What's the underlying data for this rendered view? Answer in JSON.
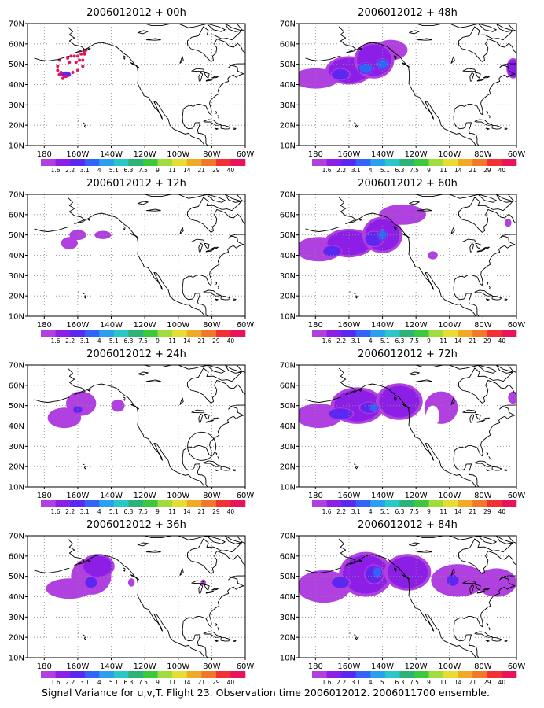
{
  "caption": "Signal Variance for u,v,T. Flight 23. Observation time 2006012012. 2006011700 ensemble.",
  "colors": {
    "levels": [
      "#b040e0",
      "#8c1ee6",
      "#5a28f0",
      "#3264f5",
      "#2aa0f0",
      "#28c8c8",
      "#2ab478",
      "#3cc83c",
      "#a0dc3c",
      "#e6dc32",
      "#f0aa28",
      "#f07828",
      "#f03232",
      "#e6145a"
    ],
    "coast": "#000000",
    "grid": "#888888"
  },
  "colorbar": {
    "labels": [
      "1.6",
      "2.2",
      "3.1",
      "4",
      "5.1",
      "6.3",
      "7.5",
      "9",
      "11",
      "14",
      "21",
      "29",
      "40"
    ]
  },
  "axes": {
    "x_ticks": [
      "180",
      "160W",
      "140W",
      "120W",
      "100W",
      "80W",
      "60W"
    ],
    "y_ticks": [
      "10N",
      "20N",
      "30N",
      "40N",
      "50N",
      "60N",
      "70N"
    ]
  },
  "panels": [
    {
      "title": "2006012012 + 00h"
    },
    {
      "title": "2006012012 + 48h"
    },
    {
      "title": "2006012012 + 12h"
    },
    {
      "title": "2006012012 + 60h"
    },
    {
      "title": "2006012012 + 24h"
    },
    {
      "title": "2006012012 + 72h"
    },
    {
      "title": "2006012012 + 36h"
    },
    {
      "title": "2006012012 + 84h"
    }
  ],
  "chart_data": {
    "type": "heatmap",
    "x_ticks": [
      "180",
      "160W",
      "140W",
      "120W",
      "100W",
      "80W",
      "60W"
    ],
    "y_ticks": [
      "10N",
      "20N",
      "30N",
      "40N",
      "50N",
      "60N",
      "70N"
    ],
    "lon_range": [
      -190,
      -60
    ],
    "lat_range": [
      10,
      70
    ],
    "contour_levels": [
      1.6,
      2.2,
      3.1,
      4,
      5.1,
      6.3,
      7.5,
      9,
      11,
      14,
      21,
      29,
      40
    ],
    "grid": true,
    "panels": [
      {
        "lead_hours": 0,
        "blobs": [
          {
            "lon": -167,
            "lat": 45,
            "wlon": 3,
            "wlat": 1.5,
            "level": 3
          }
        ],
        "dots": [
          [
            -171,
            52
          ],
          [
            -172,
            49
          ],
          [
            -172,
            47
          ],
          [
            -171,
            45
          ],
          [
            -169,
            43
          ],
          [
            -168,
            44
          ],
          [
            -166,
            53
          ],
          [
            -164,
            54
          ],
          [
            -162,
            54
          ],
          [
            -160,
            54
          ],
          [
            -158,
            55
          ],
          [
            -156,
            56
          ],
          [
            -155,
            57
          ],
          [
            -156,
            55
          ],
          [
            -157,
            52
          ],
          [
            -157,
            49
          ],
          [
            -160,
            47
          ],
          [
            -163,
            46
          ],
          [
            -167,
            44
          ],
          [
            -170,
            46
          ],
          [
            -165,
            51
          ],
          [
            -161,
            51
          ],
          [
            -159,
            52
          ]
        ]
      },
      {
        "lead_hours": 48,
        "blobs": [
          {
            "lon": -180,
            "lat": 43,
            "wlon": 14,
            "wlat": 5,
            "level": 1
          },
          {
            "lon": -160,
            "lat": 47,
            "wlon": 14,
            "wlat": 7,
            "level": 2
          },
          {
            "lon": -145,
            "lat": 52,
            "wlon": 12,
            "wlat": 9,
            "level": 2
          },
          {
            "lon": -135,
            "lat": 57,
            "wlon": 10,
            "wlat": 5,
            "level": 1
          },
          {
            "lon": -165,
            "lat": 45,
            "wlon": 6,
            "wlat": 3,
            "level": 3
          },
          {
            "lon": -150,
            "lat": 48,
            "wlon": 5,
            "wlat": 3,
            "level": 4
          },
          {
            "lon": -140,
            "lat": 50,
            "wlon": 4,
            "wlat": 3,
            "level": 4
          },
          {
            "lon": -62,
            "lat": 48,
            "wlon": 4,
            "wlat": 5,
            "level": 2
          }
        ]
      },
      {
        "lead_hours": 12,
        "blobs": [
          {
            "lon": -165,
            "lat": 46,
            "wlon": 5,
            "wlat": 3,
            "level": 1
          },
          {
            "lon": -160,
            "lat": 50,
            "wlon": 5,
            "wlat": 2.5,
            "level": 1
          },
          {
            "lon": -145,
            "lat": 50,
            "wlon": 5,
            "wlat": 2,
            "level": 1
          }
        ]
      },
      {
        "lead_hours": 60,
        "blobs": [
          {
            "lon": -178,
            "lat": 43,
            "wlon": 14,
            "wlat": 6,
            "level": 1
          },
          {
            "lon": -160,
            "lat": 46,
            "wlon": 15,
            "wlat": 7,
            "level": 2
          },
          {
            "lon": -140,
            "lat": 50,
            "wlon": 12,
            "wlat": 9,
            "level": 2
          },
          {
            "lon": -128,
            "lat": 60,
            "wlon": 14,
            "wlat": 5,
            "level": 1
          },
          {
            "lon": -170,
            "lat": 42,
            "wlon": 6,
            "wlat": 3,
            "level": 3
          },
          {
            "lon": -145,
            "lat": 48,
            "wlon": 6,
            "wlat": 4,
            "level": 3
          },
          {
            "lon": -140,
            "lat": 50,
            "wlon": 3,
            "wlat": 3,
            "level": 4
          },
          {
            "lon": -110,
            "lat": 40,
            "wlon": 3,
            "wlat": 2,
            "level": 1
          },
          {
            "lon": -65,
            "lat": 56,
            "wlon": 2,
            "wlat": 2,
            "level": 1
          }
        ]
      },
      {
        "lead_hours": 24,
        "blobs": [
          {
            "lon": -168,
            "lat": 44,
            "wlon": 10,
            "wlat": 5,
            "level": 1
          },
          {
            "lon": -158,
            "lat": 51,
            "wlon": 9,
            "wlat": 6,
            "level": 1
          },
          {
            "lon": -160,
            "lat": 48,
            "wlon": 3,
            "wlat": 2,
            "level": 3
          },
          {
            "lon": -136,
            "lat": 50,
            "wlon": 4,
            "wlat": 3,
            "level": 1
          }
        ]
      },
      {
        "lead_hours": 72,
        "blobs": [
          {
            "lon": -178,
            "lat": 45,
            "wlon": 14,
            "wlat": 6,
            "level": 1
          },
          {
            "lon": -155,
            "lat": 50,
            "wlon": 16,
            "wlat": 9,
            "level": 2
          },
          {
            "lon": -130,
            "lat": 52,
            "wlon": 14,
            "wlat": 9,
            "level": 2
          },
          {
            "lon": -105,
            "lat": 49,
            "wlon": 10,
            "wlat": 8,
            "level": 1
          },
          {
            "lon": -165,
            "lat": 46,
            "wlon": 8,
            "wlat": 3,
            "level": 3
          },
          {
            "lon": -148,
            "lat": 49,
            "wlon": 6,
            "wlat": 3,
            "level": 3
          },
          {
            "lon": -145,
            "lat": 49,
            "wlon": 3,
            "wlat": 2,
            "level": 4
          },
          {
            "lon": -62,
            "lat": 54,
            "wlon": 3,
            "wlat": 3,
            "level": 1
          }
        ],
        "holes": [
          {
            "lon": -110,
            "lat": 45,
            "wlon": 4,
            "wlat": 5
          }
        ]
      },
      {
        "lead_hours": 36,
        "blobs": [
          {
            "lon": -165,
            "lat": 44,
            "wlon": 14,
            "wlat": 5,
            "level": 1
          },
          {
            "lon": -152,
            "lat": 50,
            "wlon": 12,
            "wlat": 9,
            "level": 1
          },
          {
            "lon": -148,
            "lat": 55,
            "wlon": 10,
            "wlat": 6,
            "level": 2
          },
          {
            "lon": -152,
            "lat": 47,
            "wlon": 4,
            "wlat": 3,
            "level": 3
          },
          {
            "lon": -128,
            "lat": 47,
            "wlon": 2,
            "wlat": 2,
            "level": 1
          },
          {
            "lon": -85,
            "lat": 47,
            "wlon": 1.5,
            "wlat": 1.5,
            "level": 1
          }
        ]
      },
      {
        "lead_hours": 84,
        "blobs": [
          {
            "lon": -175,
            "lat": 45,
            "wlon": 16,
            "wlat": 8,
            "level": 1
          },
          {
            "lon": -150,
            "lat": 51,
            "wlon": 16,
            "wlat": 11,
            "level": 2
          },
          {
            "lon": -125,
            "lat": 52,
            "wlon": 14,
            "wlat": 9,
            "level": 2
          },
          {
            "lon": -95,
            "lat": 48,
            "wlon": 16,
            "wlat": 8,
            "level": 1
          },
          {
            "lon": -72,
            "lat": 47,
            "wlon": 12,
            "wlat": 7,
            "level": 1
          },
          {
            "lon": -165,
            "lat": 47,
            "wlon": 6,
            "wlat": 3,
            "level": 3
          },
          {
            "lon": -145,
            "lat": 51,
            "wlon": 6,
            "wlat": 5,
            "level": 3
          },
          {
            "lon": -143,
            "lat": 52,
            "wlon": 3,
            "wlat": 3,
            "level": 4
          },
          {
            "lon": -98,
            "lat": 48,
            "wlon": 4,
            "wlat": 3,
            "level": 3
          }
        ]
      }
    ]
  }
}
